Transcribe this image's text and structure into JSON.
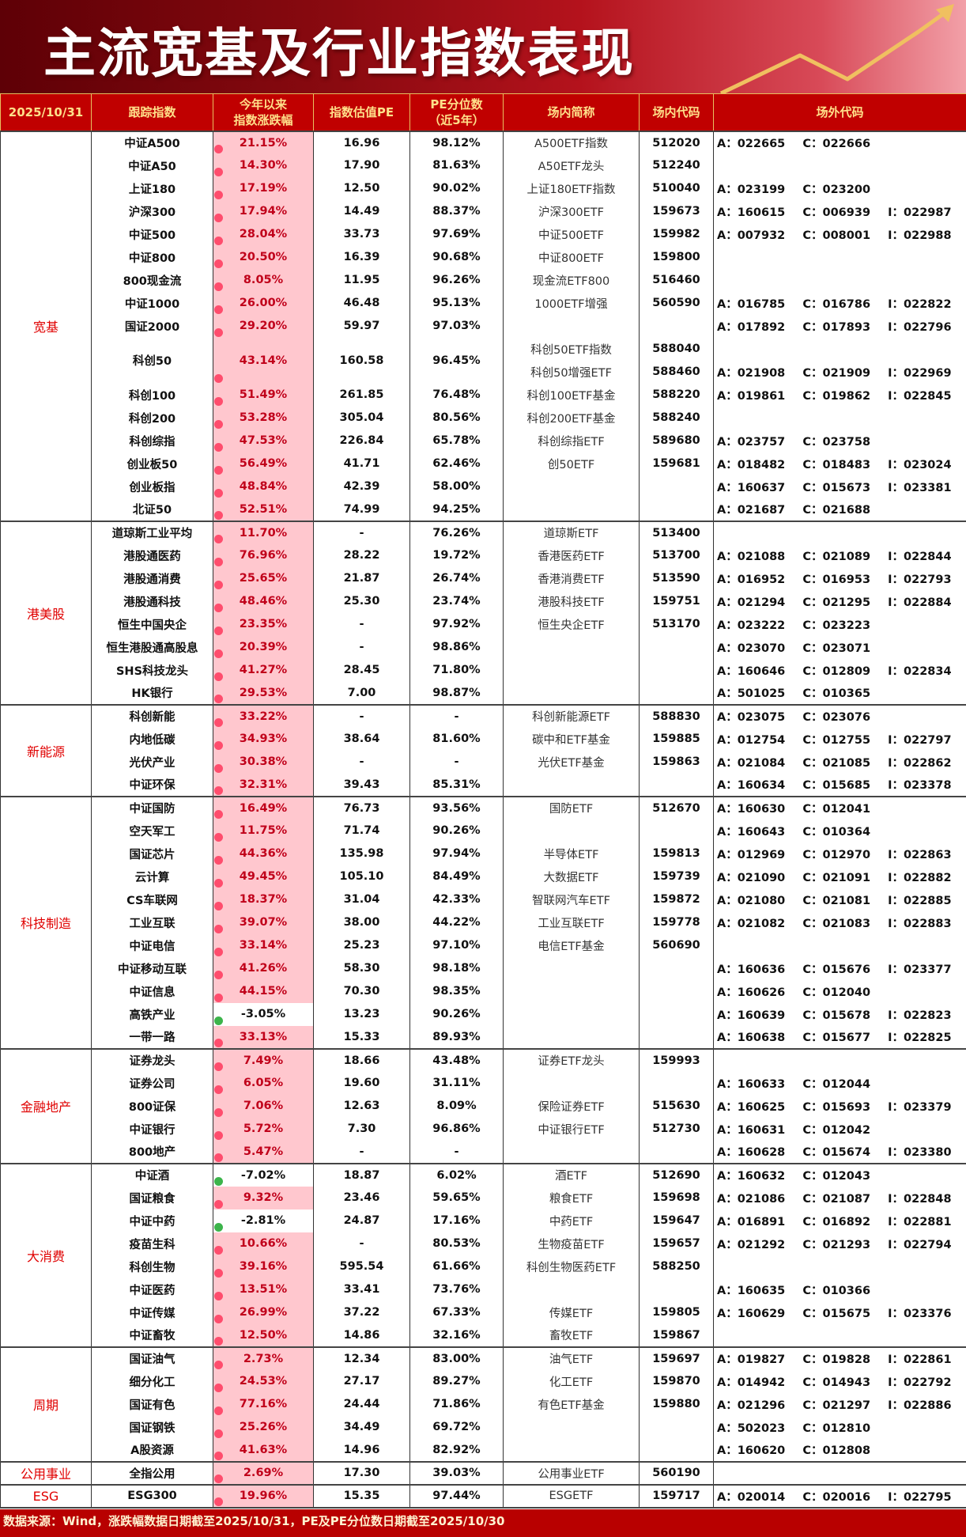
{
  "title": "主流宽基及行业指数表现",
  "colors": {
    "header_bg": "#c00000",
    "header_text": "#ffe08a",
    "positive_bg": "#ffc7ce",
    "positive_text": "#c0001a",
    "positive_dot": "#ff4d6d",
    "negative_dot": "#3cb44b",
    "group_text": "#e00000"
  },
  "headers": {
    "date": "2025/10/31",
    "index": "跟踪指数",
    "change_l1": "今年以来",
    "change_l2": "指数涨跌幅",
    "pe": "指数估值PE",
    "pct_l1": "PE分位数",
    "pct_l2": "（近5年）",
    "etf": "场内简称",
    "code": "场内代码",
    "otc": "场外代码"
  },
  "groups": [
    {
      "name": "宽基",
      "rows": [
        {
          "index": "中证A500",
          "change": "21.15%",
          "pe": "16.96",
          "pe_pct": "98.12%",
          "funds": [
            {
              "etf": "A500ETF指数",
              "code": "512020",
              "otc": "A：022665  C：022666"
            }
          ]
        },
        {
          "index": "中证A50",
          "change": "14.30%",
          "pe": "17.90",
          "pe_pct": "81.63%",
          "funds": [
            {
              "etf": "A50ETF龙头",
              "code": "512240",
              "otc": ""
            }
          ]
        },
        {
          "index": "上证180",
          "change": "17.19%",
          "pe": "12.50",
          "pe_pct": "90.02%",
          "funds": [
            {
              "etf": "上证180ETF指数",
              "code": "510040",
              "otc": "A：023199  C：023200"
            }
          ]
        },
        {
          "index": "沪深300",
          "change": "17.94%",
          "pe": "14.49",
          "pe_pct": "88.37%",
          "funds": [
            {
              "etf": "沪深300ETF",
              "code": "159673",
              "otc": "A：160615  C：006939  I：022987"
            }
          ]
        },
        {
          "index": "中证500",
          "change": "28.04%",
          "pe": "33.73",
          "pe_pct": "97.69%",
          "funds": [
            {
              "etf": "中证500ETF",
              "code": "159982",
              "otc": "A：007932  C：008001  I：022988"
            }
          ]
        },
        {
          "index": "中证800",
          "change": "20.50%",
          "pe": "16.39",
          "pe_pct": "90.68%",
          "funds": [
            {
              "etf": "中证800ETF",
              "code": "159800",
              "otc": ""
            }
          ]
        },
        {
          "index": "800现金流",
          "change": "8.05%",
          "pe": "11.95",
          "pe_pct": "96.26%",
          "funds": [
            {
              "etf": "现金流ETF800",
              "code": "516460",
              "otc": ""
            }
          ]
        },
        {
          "index": "中证1000",
          "change": "26.00%",
          "pe": "46.48",
          "pe_pct": "95.13%",
          "funds": [
            {
              "etf": "1000ETF增强",
              "code": "560590",
              "otc": "A：016785  C：016786  I：022822"
            }
          ]
        },
        {
          "index": "国证2000",
          "change": "29.20%",
          "pe": "59.97",
          "pe_pct": "97.03%",
          "funds": [
            {
              "etf": "",
              "code": "",
              "otc": "A：017892  C：017893  I：022796"
            }
          ]
        },
        {
          "index": "科创50",
          "change": "43.14%",
          "pe": "160.58",
          "pe_pct": "96.45%",
          "funds": [
            {
              "etf": "科创50ETF指数",
              "code": "588040",
              "otc": ""
            },
            {
              "etf": "科创50增强ETF",
              "code": "588460",
              "otc": "A：021908  C：021909  I：022969"
            }
          ]
        },
        {
          "index": "科创100",
          "change": "51.49%",
          "pe": "261.85",
          "pe_pct": "76.48%",
          "funds": [
            {
              "etf": "科创100ETF基金",
              "code": "588220",
              "otc": "A：019861  C：019862  I：022845"
            }
          ]
        },
        {
          "index": "科创200",
          "change": "53.28%",
          "pe": "305.04",
          "pe_pct": "80.56%",
          "funds": [
            {
              "etf": "科创200ETF基金",
              "code": "588240",
              "otc": ""
            }
          ]
        },
        {
          "index": "科创综指",
          "change": "47.53%",
          "pe": "226.84",
          "pe_pct": "65.78%",
          "funds": [
            {
              "etf": "科创综指ETF",
              "code": "589680",
              "otc": "A：023757  C：023758"
            }
          ]
        },
        {
          "index": "创业板50",
          "change": "56.49%",
          "pe": "41.71",
          "pe_pct": "62.46%",
          "funds": [
            {
              "etf": "创50ETF",
              "code": "159681",
              "otc": "A：018482  C：018483  I：023024"
            }
          ]
        },
        {
          "index": "创业板指",
          "change": "48.84%",
          "pe": "42.39",
          "pe_pct": "58.00%",
          "funds": [
            {
              "etf": "",
              "code": "",
              "otc": "A：160637  C：015673  I：023381"
            }
          ]
        },
        {
          "index": "北证50",
          "change": "52.51%",
          "pe": "74.99",
          "pe_pct": "94.25%",
          "funds": [
            {
              "etf": "",
              "code": "",
              "otc": "A：021687  C：021688"
            }
          ]
        }
      ]
    },
    {
      "name": "港美股",
      "rows": [
        {
          "index": "道琼斯工业平均",
          "change": "11.70%",
          "pe": "-",
          "pe_pct": "76.26%",
          "funds": [
            {
              "etf": "道琼斯ETF",
              "code": "513400",
              "otc": ""
            }
          ]
        },
        {
          "index": "港股通医药",
          "change": "76.96%",
          "pe": "28.22",
          "pe_pct": "19.72%",
          "funds": [
            {
              "etf": "香港医药ETF",
              "code": "513700",
              "otc": "A：021088  C：021089  I：022844"
            }
          ]
        },
        {
          "index": "港股通消费",
          "change": "25.65%",
          "pe": "21.87",
          "pe_pct": "26.74%",
          "funds": [
            {
              "etf": "香港消费ETF",
              "code": "513590",
              "otc": "A：016952  C：016953  I：022793"
            }
          ]
        },
        {
          "index": "港股通科技",
          "change": "48.46%",
          "pe": "25.30",
          "pe_pct": "23.74%",
          "funds": [
            {
              "etf": "港股科技ETF",
              "code": "159751",
              "otc": "A：021294  C：021295  I：022884"
            }
          ]
        },
        {
          "index": "恒生中国央企",
          "change": "23.35%",
          "pe": "-",
          "pe_pct": "97.92%",
          "funds": [
            {
              "etf": "恒生央企ETF",
              "code": "513170",
              "otc": "A：023222  C：023223"
            }
          ]
        },
        {
          "index": "恒生港股通高股息",
          "change": "20.39%",
          "pe": "-",
          "pe_pct": "98.86%",
          "funds": [
            {
              "etf": "",
              "code": "",
              "otc": "A：023070  C：023071"
            }
          ]
        },
        {
          "index": "SHS科技龙头",
          "change": "41.27%",
          "pe": "28.45",
          "pe_pct": "71.80%",
          "funds": [
            {
              "etf": "",
              "code": "",
              "otc": "A：160646  C：012809  I：022834"
            }
          ]
        },
        {
          "index": "HK银行",
          "change": "29.53%",
          "pe": "7.00",
          "pe_pct": "98.87%",
          "funds": [
            {
              "etf": "",
              "code": "",
              "otc": "A：501025  C：010365"
            }
          ]
        }
      ]
    },
    {
      "name": "新能源",
      "rows": [
        {
          "index": "科创新能",
          "change": "33.22%",
          "pe": "-",
          "pe_pct": "-",
          "funds": [
            {
              "etf": "科创新能源ETF",
              "code": "588830",
              "otc": "A：023075  C：023076"
            }
          ]
        },
        {
          "index": "内地低碳",
          "change": "34.93%",
          "pe": "38.64",
          "pe_pct": "81.60%",
          "funds": [
            {
              "etf": "碳中和ETF基金",
              "code": "159885",
              "otc": "A：012754  C：012755  I：022797"
            }
          ]
        },
        {
          "index": "光伏产业",
          "change": "30.38%",
          "pe": "-",
          "pe_pct": "-",
          "funds": [
            {
              "etf": "光伏ETF基金",
              "code": "159863",
              "otc": "A：021084  C：021085  I：022862"
            }
          ]
        },
        {
          "index": "中证环保",
          "change": "32.31%",
          "pe": "39.43",
          "pe_pct": "85.31%",
          "funds": [
            {
              "etf": "",
              "code": "",
              "otc": "A：160634  C：015685  I：023378"
            }
          ]
        }
      ]
    },
    {
      "name": "科技制造",
      "rows": [
        {
          "index": "中证国防",
          "change": "16.49%",
          "pe": "76.73",
          "pe_pct": "93.56%",
          "funds": [
            {
              "etf": "国防ETF",
              "code": "512670",
              "otc": "A：160630  C：012041"
            }
          ]
        },
        {
          "index": "空天军工",
          "change": "11.75%",
          "pe": "71.74",
          "pe_pct": "90.26%",
          "funds": [
            {
              "etf": "",
              "code": "",
              "otc": "A：160643  C：010364"
            }
          ]
        },
        {
          "index": "国证芯片",
          "change": "44.36%",
          "pe": "135.98",
          "pe_pct": "97.94%",
          "funds": [
            {
              "etf": "半导体ETF",
              "code": "159813",
              "otc": "A：012969  C：012970  I：022863"
            }
          ]
        },
        {
          "index": "云计算",
          "change": "49.45%",
          "pe": "105.10",
          "pe_pct": "84.49%",
          "funds": [
            {
              "etf": "大数据ETF",
              "code": "159739",
              "otc": "A：021090  C：021091  I：022882"
            }
          ]
        },
        {
          "index": "CS车联网",
          "change": "18.37%",
          "pe": "31.04",
          "pe_pct": "42.33%",
          "funds": [
            {
              "etf": "智联网汽车ETF",
              "code": "159872",
              "otc": "A：021080  C：021081  I：022885"
            }
          ]
        },
        {
          "index": "工业互联",
          "change": "39.07%",
          "pe": "38.00",
          "pe_pct": "44.22%",
          "funds": [
            {
              "etf": "工业互联ETF",
              "code": "159778",
              "otc": "A：021082  C：021083  I：022883"
            }
          ]
        },
        {
          "index": "中证电信",
          "change": "33.14%",
          "pe": "25.23",
          "pe_pct": "97.10%",
          "funds": [
            {
              "etf": "电信ETF基金",
              "code": "560690",
              "otc": ""
            }
          ]
        },
        {
          "index": "中证移动互联",
          "change": "41.26%",
          "pe": "58.30",
          "pe_pct": "98.18%",
          "funds": [
            {
              "etf": "",
              "code": "",
              "otc": "A：160636  C：015676  I：023377"
            }
          ]
        },
        {
          "index": "中证信息",
          "change": "44.15%",
          "pe": "70.30",
          "pe_pct": "98.35%",
          "funds": [
            {
              "etf": "",
              "code": "",
              "otc": "A：160626  C：012040"
            }
          ]
        },
        {
          "index": "高铁产业",
          "change": "-3.05%",
          "pe": "13.23",
          "pe_pct": "90.26%",
          "funds": [
            {
              "etf": "",
              "code": "",
              "otc": "A：160639  C：015678  I：022823"
            }
          ]
        },
        {
          "index": "一带一路",
          "change": "33.13%",
          "pe": "15.33",
          "pe_pct": "89.93%",
          "funds": [
            {
              "etf": "",
              "code": "",
              "otc": "A：160638  C：015677  I：022825"
            }
          ]
        }
      ]
    },
    {
      "name": "金融地产",
      "rows": [
        {
          "index": "证券龙头",
          "change": "7.49%",
          "pe": "18.66",
          "pe_pct": "43.48%",
          "funds": [
            {
              "etf": "证券ETF龙头",
              "code": "159993",
              "otc": ""
            }
          ]
        },
        {
          "index": "证券公司",
          "change": "6.05%",
          "pe": "19.60",
          "pe_pct": "31.11%",
          "funds": [
            {
              "etf": "",
              "code": "",
              "otc": "A：160633  C：012044"
            }
          ]
        },
        {
          "index": "800证保",
          "change": "7.06%",
          "pe": "12.63",
          "pe_pct": "8.09%",
          "funds": [
            {
              "etf": "保险证券ETF",
              "code": "515630",
              "otc": "A：160625  C：015693  I：023379"
            }
          ]
        },
        {
          "index": "中证银行",
          "change": "5.72%",
          "pe": "7.30",
          "pe_pct": "96.86%",
          "funds": [
            {
              "etf": "中证银行ETF",
              "code": "512730",
              "otc": "A：160631  C：012042"
            }
          ]
        },
        {
          "index": "800地产",
          "change": "5.47%",
          "pe": "-",
          "pe_pct": "-",
          "funds": [
            {
              "etf": "",
              "code": "",
              "otc": "A：160628  C：015674  I：023380"
            }
          ]
        }
      ]
    },
    {
      "name": "大消费",
      "rows": [
        {
          "index": "中证酒",
          "change": "-7.02%",
          "pe": "18.87",
          "pe_pct": "6.02%",
          "funds": [
            {
              "etf": "酒ETF",
              "code": "512690",
              "otc": "A：160632  C：012043"
            }
          ]
        },
        {
          "index": "国证粮食",
          "change": "9.32%",
          "pe": "23.46",
          "pe_pct": "59.65%",
          "funds": [
            {
              "etf": "粮食ETF",
              "code": "159698",
              "otc": "A：021086  C：021087  I：022848"
            }
          ]
        },
        {
          "index": "中证中药",
          "change": "-2.81%",
          "pe": "24.87",
          "pe_pct": "17.16%",
          "funds": [
            {
              "etf": "中药ETF",
              "code": "159647",
              "otc": "A：016891  C：016892  I：022881"
            }
          ]
        },
        {
          "index": "疫苗生科",
          "change": "10.66%",
          "pe": "-",
          "pe_pct": "80.53%",
          "funds": [
            {
              "etf": "生物疫苗ETF",
              "code": "159657",
              "otc": "A：021292  C：021293  I：022794"
            }
          ]
        },
        {
          "index": "科创生物",
          "change": "39.16%",
          "pe": "595.54",
          "pe_pct": "61.66%",
          "funds": [
            {
              "etf": "科创生物医药ETF",
              "code": "588250",
              "otc": ""
            }
          ]
        },
        {
          "index": "中证医药",
          "change": "13.51%",
          "pe": "33.41",
          "pe_pct": "73.76%",
          "funds": [
            {
              "etf": "",
              "code": "",
              "otc": "A：160635  C：010366"
            }
          ]
        },
        {
          "index": "中证传媒",
          "change": "26.99%",
          "pe": "37.22",
          "pe_pct": "67.33%",
          "funds": [
            {
              "etf": "传媒ETF",
              "code": "159805",
              "otc": "A：160629  C：015675  I：023376"
            }
          ]
        },
        {
          "index": "中证畜牧",
          "change": "12.50%",
          "pe": "14.86",
          "pe_pct": "32.16%",
          "funds": [
            {
              "etf": "畜牧ETF",
              "code": "159867",
              "otc": ""
            }
          ]
        }
      ]
    },
    {
      "name": "周期",
      "rows": [
        {
          "index": "国证油气",
          "change": "2.73%",
          "pe": "12.34",
          "pe_pct": "83.00%",
          "funds": [
            {
              "etf": "油气ETF",
              "code": "159697",
              "otc": "A：019827  C：019828  I：022861"
            }
          ]
        },
        {
          "index": "细分化工",
          "change": "24.53%",
          "pe": "27.17",
          "pe_pct": "89.27%",
          "funds": [
            {
              "etf": "化工ETF",
              "code": "159870",
              "otc": "A：014942  C：014943  I：022792"
            }
          ]
        },
        {
          "index": "国证有色",
          "change": "77.16%",
          "pe": "24.44",
          "pe_pct": "71.86%",
          "funds": [
            {
              "etf": "有色ETF基金",
              "code": "159880",
              "otc": "A：021296  C：021297  I：022886"
            }
          ]
        },
        {
          "index": "国证钢铁",
          "change": "25.26%",
          "pe": "34.49",
          "pe_pct": "69.72%",
          "funds": [
            {
              "etf": "",
              "code": "",
              "otc": "A：502023  C：012810"
            }
          ]
        },
        {
          "index": "A股资源",
          "change": "41.63%",
          "pe": "14.96",
          "pe_pct": "82.92%",
          "funds": [
            {
              "etf": "",
              "code": "",
              "otc": "A：160620  C：012808"
            }
          ]
        }
      ]
    },
    {
      "name": "公用事业",
      "rows": [
        {
          "index": "全指公用",
          "change": "2.69%",
          "pe": "17.30",
          "pe_pct": "39.03%",
          "funds": [
            {
              "etf": "公用事业ETF",
              "code": "560190",
              "otc": ""
            }
          ]
        }
      ]
    },
    {
      "name": "ESG",
      "rows": [
        {
          "index": "ESG300",
          "change": "19.96%",
          "pe": "15.35",
          "pe_pct": "97.44%",
          "funds": [
            {
              "etf": "ESGETF",
              "code": "159717",
              "otc": "A：020014  C：020016  I：022795"
            }
          ]
        }
      ]
    }
  ],
  "footer": "数据来源：Wind，涨跌幅数据日期截至2025/10/31，PE及PE分位数日期截至2025/10/30"
}
